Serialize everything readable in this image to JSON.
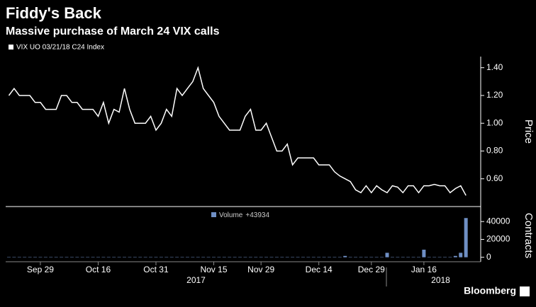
{
  "chart_data": [
    {
      "type": "line",
      "title": "Fiddy's Back",
      "subtitle": "Massive purchase of March 24 VIX calls",
      "series": [
        {
          "name": "VIX UO 03/21/18 C24 Index",
          "color": "#ffffff",
          "values": [
            1.2,
            1.25,
            1.2,
            1.2,
            1.2,
            1.15,
            1.15,
            1.1,
            1.1,
            1.1,
            1.2,
            1.2,
            1.15,
            1.15,
            1.1,
            1.1,
            1.1,
            1.05,
            1.15,
            1.0,
            1.1,
            1.08,
            1.25,
            1.1,
            1.0,
            1.0,
            1.0,
            1.05,
            0.95,
            1.0,
            1.1,
            1.05,
            1.25,
            1.2,
            1.25,
            1.3,
            1.4,
            1.25,
            1.2,
            1.15,
            1.05,
            1.0,
            0.95,
            0.95,
            0.95,
            1.05,
            1.1,
            0.95,
            0.95,
            1.0,
            0.9,
            0.8,
            0.8,
            0.85,
            0.7,
            0.75,
            0.75,
            0.75,
            0.75,
            0.7,
            0.7,
            0.7,
            0.65,
            0.62,
            0.6,
            0.58,
            0.52,
            0.5,
            0.55,
            0.5,
            0.55,
            0.52,
            0.5,
            0.55,
            0.54,
            0.5,
            0.55,
            0.55,
            0.5,
            0.55,
            0.55,
            0.56,
            0.55,
            0.55,
            0.5,
            0.53,
            0.55,
            0.48
          ]
        }
      ],
      "ylabel": "Price",
      "ylim": [
        0.4,
        1.48
      ],
      "yticks": [
        {
          "value": 0.6,
          "label": "0.60"
        },
        {
          "value": 0.8,
          "label": "0.80"
        },
        {
          "value": 1.0,
          "label": "1.00"
        },
        {
          "value": 1.2,
          "label": "1.20"
        },
        {
          "value": 1.4,
          "label": "1.40"
        }
      ]
    },
    {
      "type": "bar",
      "categories": [
        null,
        null,
        null,
        null,
        null,
        null,
        "Sep 29",
        null,
        null,
        null,
        null,
        null,
        null,
        null,
        null,
        null,
        null,
        "Oct 16",
        null,
        null,
        null,
        null,
        null,
        null,
        null,
        null,
        null,
        null,
        "Oct 31",
        null,
        null,
        null,
        null,
        null,
        null,
        null,
        null,
        null,
        null,
        "Nov 15",
        null,
        null,
        null,
        null,
        null,
        null,
        null,
        null,
        "Nov 29",
        null,
        null,
        null,
        null,
        null,
        null,
        null,
        null,
        null,
        null,
        "Dec 14",
        null,
        null,
        null,
        null,
        null,
        null,
        null,
        null,
        null,
        "Dec 29",
        null,
        null,
        null,
        null,
        null,
        null,
        null,
        null,
        null,
        "Jan 16",
        null,
        null,
        null,
        null,
        null,
        null,
        null,
        null
      ],
      "years": [
        "2017",
        "2018"
      ],
      "series": [
        {
          "name": "Volume",
          "legend_value_label": "+43934",
          "color": "#6f8fc4",
          "values": [
            200,
            300,
            200,
            300,
            200,
            300,
            200,
            300,
            200,
            300,
            200,
            300,
            200,
            300,
            200,
            300,
            200,
            300,
            200,
            300,
            200,
            300,
            200,
            300,
            200,
            300,
            200,
            300,
            200,
            300,
            200,
            300,
            200,
            300,
            200,
            300,
            200,
            300,
            200,
            300,
            200,
            300,
            200,
            300,
            200,
            300,
            200,
            300,
            200,
            300,
            200,
            300,
            200,
            300,
            200,
            300,
            200,
            300,
            200,
            300,
            200,
            300,
            200,
            300,
            1500,
            300,
            200,
            300,
            200,
            300,
            200,
            300,
            5000,
            300,
            200,
            300,
            200,
            300,
            200,
            8500,
            300,
            200,
            300,
            200,
            300,
            1500,
            5000,
            43934
          ]
        }
      ],
      "ylabel": "Contracts",
      "ylim": [
        -5000,
        56000
      ],
      "yticks": [
        0,
        20000,
        40000
      ],
      "source": "Bloomberg"
    }
  ]
}
